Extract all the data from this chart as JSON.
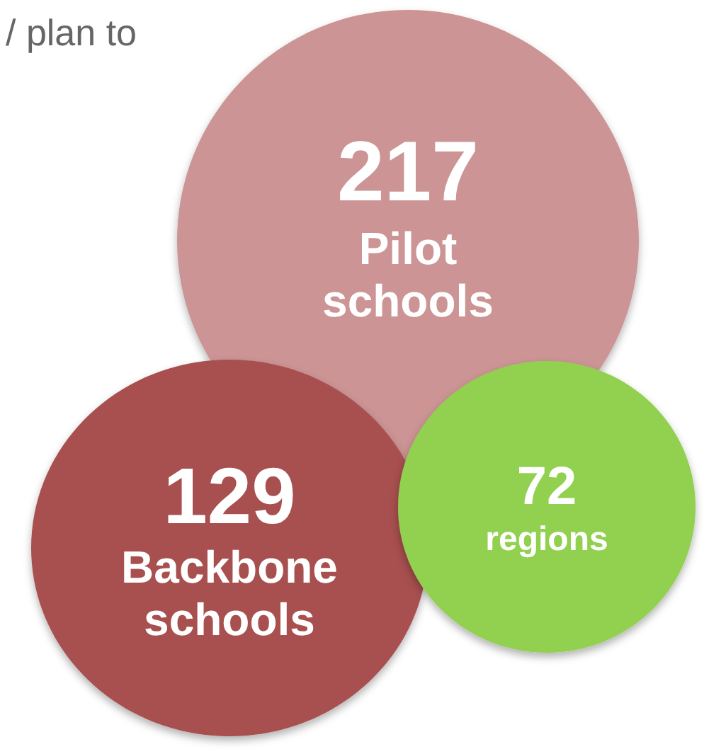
{
  "chart_data": {
    "type": "other",
    "categories": [
      "Pilot schools",
      "Backbone schools",
      "regions"
    ],
    "values": [
      217,
      129,
      72
    ],
    "colors": [
      "#cc9494",
      "#a85050",
      "#92d050"
    ],
    "annotations": [
      "/ plan to"
    ],
    "data_labels": true
  }
}
